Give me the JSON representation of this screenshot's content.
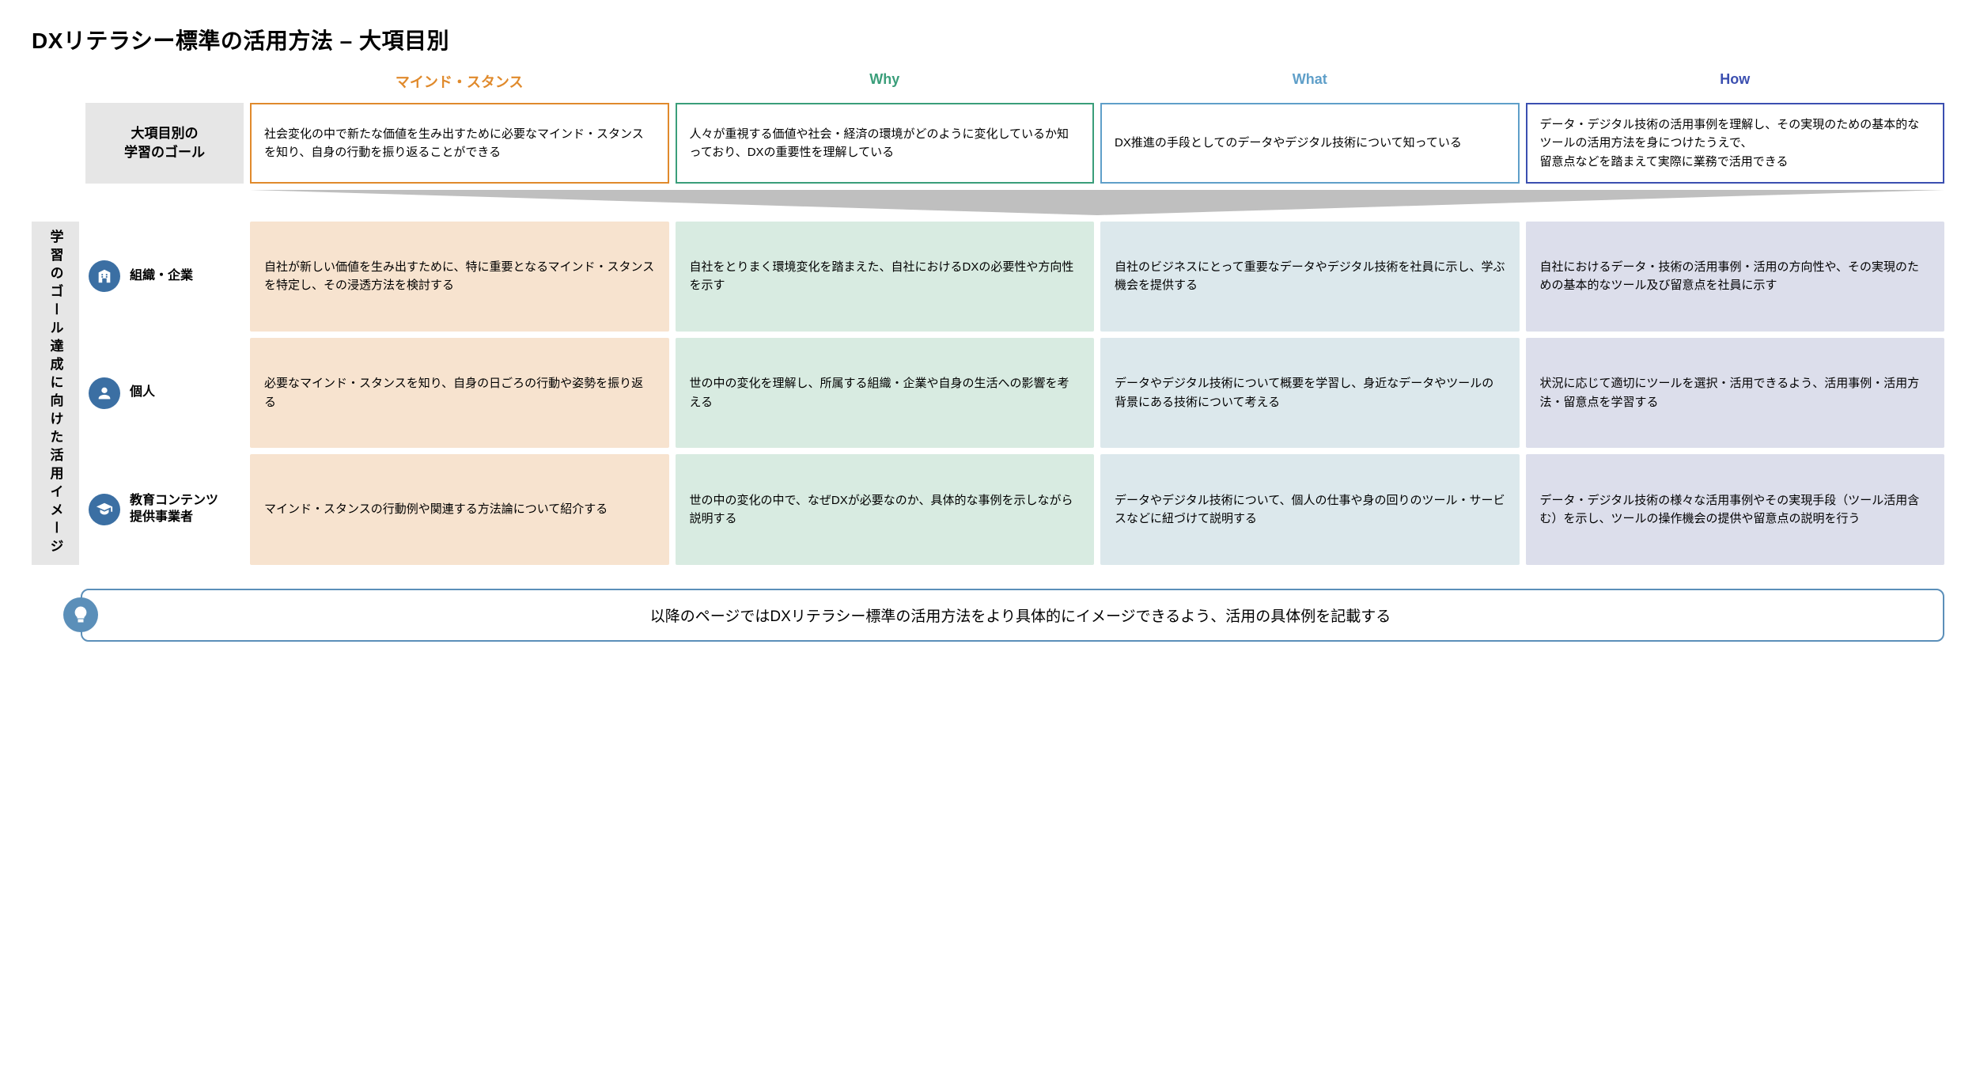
{
  "title": "DXリテラシー標準の活用方法  –  大項目別",
  "columns": [
    {
      "key": "mind",
      "label": "マインド・スタンス",
      "border": "#e08a2c",
      "header_text": "#e08a2c",
      "fill": "#f7e3cf"
    },
    {
      "key": "why",
      "label": "Why",
      "border": "#3a9e7a",
      "header_text": "#3a9e7a",
      "fill": "#d8ebe1"
    },
    {
      "key": "what",
      "label": "What",
      "border": "#5f9fc9",
      "header_text": "#5f9fc9",
      "fill": "#dce8ec"
    },
    {
      "key": "how",
      "label": "How",
      "border": "#3b4fb0",
      "header_text": "#3b4fb0",
      "fill": "#dcdeeb"
    }
  ],
  "goal_row_label": "大項目別の\n学習のゴール",
  "goal_row": {
    "mind": "社会変化の中で新たな価値を生み出すために必要なマインド・スタンスを知り、自身の行動を振り返ることができる",
    "why": "人々が重視する価値や社会・経済の環境がどのように変化しているか知っており、DXの重要性を理解している",
    "what": "DX推進の手段としてのデータやデジタル技術について知っている",
    "how": "データ・デジタル技術の活用事例を理解し、その実現のための基本的なツールの活用方法を身につけたうえで、\n留意点などを踏まえて実際に業務で活用できる"
  },
  "vside_label": "学習のゴール達成に向けた活用イメージ",
  "sidebar_bg": "#e6e6e6",
  "arrow_fill": "#bfbfbf",
  "audiences": [
    {
      "key": "org",
      "label": "組織・企業",
      "icon": "building",
      "icon_bg": "#3b6fa3"
    },
    {
      "key": "ind",
      "label": "個人",
      "icon": "person",
      "icon_bg": "#3b6fa3"
    },
    {
      "key": "edu",
      "label": "教育コンテンツ\n提供事業者",
      "icon": "grad-cap",
      "icon_bg": "#3b6fa3"
    }
  ],
  "grid": {
    "org": {
      "mind": "自社が新しい価値を生み出すために、特に重要となるマインド・スタンスを特定し、その浸透方法を検討する",
      "why": "自社をとりまく環境変化を踏まえた、自社におけるDXの必要性や方向性を示す",
      "what": "自社のビジネスにとって重要なデータやデジタル技術を社員に示し、学ぶ機会を提供する",
      "how": "自社におけるデータ・技術の活用事例・活用の方向性や、その実現のための基本的なツール及び留意点を社員に示す"
    },
    "ind": {
      "mind": "必要なマインド・スタンスを知り、自身の日ごろの行動や姿勢を振り返る",
      "why": "世の中の変化を理解し、所属する組織・企業や自身の生活への影響を考える",
      "what": "データやデジタル技術について概要を学習し、身近なデータやツールの背景にある技術について考える",
      "how": "状況に応じて適切にツールを選択・活用できるよう、活用事例・活用方法・留意点を学習する"
    },
    "edu": {
      "mind": "マインド・スタンスの行動例や関連する方法論について紹介する",
      "why": "世の中の変化の中で、なぜDXが必要なのか、具体的な事例を示しながら説明する",
      "what": "データやデジタル技術について、個人の仕事や身の回りのツール・サービスなどに紐づけて説明する",
      "how": "データ・デジタル技術の様々な活用事例やその実現手段（ツール活用含む）を示し、ツールの操作機会の提供や留意点の説明を行う"
    }
  },
  "footer": {
    "text": "以降のページではDXリテラシー標準の活用方法をより具体的にイメージできるよう、活用の具体例を記載する",
    "icon_bg": "#5b8fb9",
    "border": "#5b8fb9"
  }
}
